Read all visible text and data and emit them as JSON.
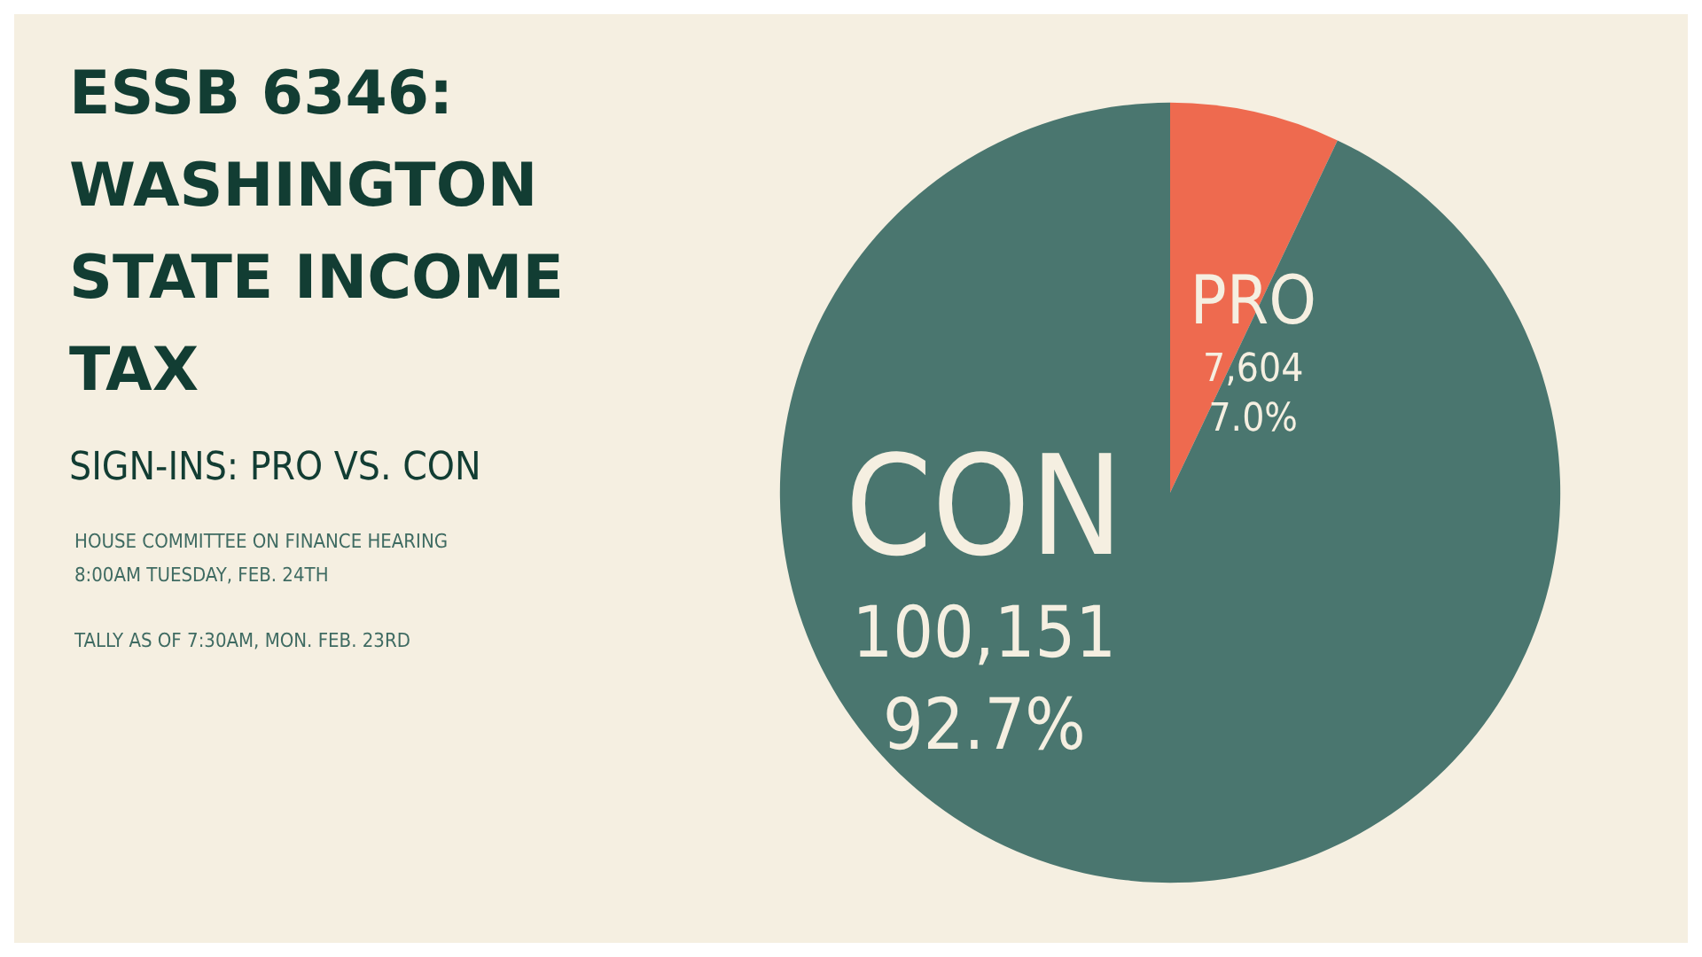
{
  "chart_data": {
    "type": "pie",
    "title": "ESSB 6346: WASHINGTON STATE INCOME TAX",
    "subtitle": "SIGN-INS: PRO VS. CON",
    "annotations": [
      "HOUSE COMMITTEE ON FINANCE HEARING\n8:00AM TUESDAY, FEB. 24TH",
      "TALLY AS OF 7:30AM, MON. FEB. 23RD"
    ],
    "categories": [
      "PRO",
      "CON"
    ],
    "values": [
      7604,
      100151
    ],
    "colors": [
      "#ee6a4f",
      "#4a766f"
    ],
    "value_labels": [
      "7,604\n7.0%",
      "100,151\n92.7%"
    ],
    "legend": false
  }
}
